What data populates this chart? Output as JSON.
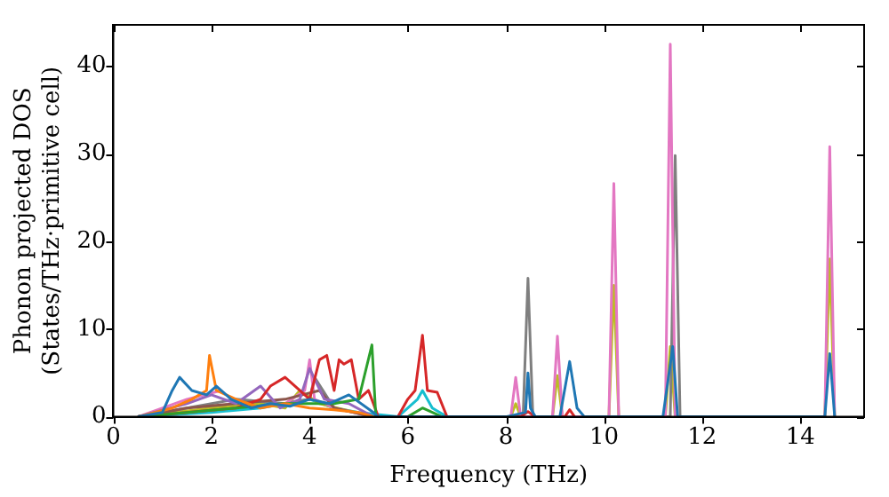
{
  "chart_data": {
    "type": "line",
    "xlabel": "Frequency (THz)",
    "ylabel": "Phonon projected DOS\n(States/THz·primitive cell)",
    "xlim": [
      0,
      15.3
    ],
    "ylim": [
      0,
      44.7
    ],
    "xticks": [
      0,
      2,
      4,
      6,
      8,
      10,
      12,
      14
    ],
    "yticks": [
      0,
      10,
      20,
      30,
      40
    ],
    "grid": false,
    "legend": false,
    "series": [
      {
        "color": "#1f77b4",
        "x": [
          0.5,
          1.0,
          1.2,
          1.35,
          1.6,
          1.9,
          2.1,
          2.4,
          2.8,
          3.2,
          3.6,
          4.0,
          4.4,
          4.8,
          5.3,
          5.4,
          8.0,
          8.4,
          8.45,
          8.5,
          8.6,
          9.1,
          9.3,
          9.45,
          9.6,
          11.2,
          11.4,
          11.5,
          14.5,
          14.6,
          14.7
        ],
        "values": [
          0,
          0.5,
          3,
          4.5,
          3,
          2.5,
          3.5,
          2,
          1,
          1.5,
          1.2,
          2,
          1.5,
          2.5,
          0.5,
          0,
          0,
          0.5,
          5,
          1,
          0,
          0,
          6.3,
          1,
          0,
          0,
          8,
          0,
          0,
          7.2,
          0
        ]
      },
      {
        "color": "#ff7f0e",
        "x": [
          0.5,
          1.2,
          1.6,
          1.9,
          1.96,
          2.1,
          2.5,
          3.0,
          3.5,
          4.0,
          4.5,
          5.0,
          5.3
        ],
        "values": [
          0,
          1,
          2,
          3,
          7,
          3,
          2,
          1,
          1.5,
          1,
          0.8,
          0.5,
          0
        ]
      },
      {
        "color": "#2ca02c",
        "x": [
          0.5,
          1.5,
          2.5,
          3.5,
          4.5,
          5.0,
          5.27,
          5.35,
          6.0,
          6.3,
          6.7
        ],
        "values": [
          0,
          0.5,
          1,
          1.5,
          1.5,
          2,
          8.2,
          0,
          0,
          1,
          0
        ]
      },
      {
        "color": "#d62728",
        "x": [
          0.5,
          1.5,
          2.5,
          3.0,
          3.2,
          3.5,
          3.8,
          4.0,
          4.2,
          4.35,
          4.5,
          4.6,
          4.7,
          4.85,
          5.0,
          5.2,
          5.4,
          5.8,
          6.0,
          6.15,
          6.3,
          6.4,
          6.6,
          6.8,
          8.3,
          8.45,
          8.6,
          9.2,
          9.3,
          9.4
        ],
        "values": [
          0,
          0.5,
          1,
          2,
          3.5,
          4.5,
          3,
          2,
          6.5,
          7,
          3,
          6.5,
          6,
          6.5,
          2,
          3,
          0,
          0,
          2,
          3,
          9.3,
          3,
          2.8,
          0,
          0,
          0.6,
          0,
          0,
          0.8,
          0
        ]
      },
      {
        "color": "#9467bd",
        "x": [
          0.5,
          1.5,
          2.0,
          2.5,
          3.0,
          3.4,
          3.8,
          4.0,
          4.3,
          4.8,
          5.3
        ],
        "values": [
          0,
          1.5,
          2.5,
          1.5,
          3.5,
          1,
          2,
          5.5,
          2,
          1.5,
          0
        ]
      },
      {
        "color": "#8c564b",
        "x": [
          0.5,
          1.5,
          2.5,
          3.5,
          4.2,
          4.5,
          5.3
        ],
        "values": [
          0,
          1,
          1.5,
          2,
          3,
          1,
          0
        ]
      },
      {
        "color": "#e377c2",
        "x": [
          0.5,
          1.5,
          2.2,
          2.8,
          3.5,
          3.9,
          4.0,
          4.1,
          4.5,
          5.3,
          8.1,
          8.2,
          8.3,
          8.95,
          9.05,
          9.15,
          10.1,
          10.2,
          10.3,
          11.25,
          11.35,
          11.45,
          14.5,
          14.6,
          14.7
        ],
        "values": [
          0,
          2,
          3,
          null,
          1.5,
          3,
          6.5,
          2,
          1,
          0,
          0,
          4.5,
          0,
          0,
          9.2,
          0,
          0,
          26.6,
          0,
          0,
          42.5,
          0,
          0,
          30.8,
          0
        ]
      },
      {
        "color": "#7f7f7f",
        "x": [
          0.5,
          1.5,
          2.5,
          3.5,
          4.0,
          4.1,
          4.5,
          5.3,
          8.35,
          8.45,
          8.55,
          11.35,
          11.45,
          11.55
        ],
        "values": [
          0,
          1,
          2,
          1.5,
          2,
          4.5,
          1,
          0,
          0,
          15.8,
          0,
          0,
          29.8,
          0
        ]
      },
      {
        "color": "#bcbd22",
        "x": [
          0.5,
          2,
          3,
          3.5,
          3.8,
          4.2,
          5.3,
          8.1,
          8.2,
          8.3,
          8.95,
          9.05,
          9.15,
          10.1,
          10.2,
          10.3,
          11.25,
          11.35,
          11.45,
          14.5,
          14.6,
          14.7
        ],
        "values": [
          0,
          1,
          1.5,
          1,
          3,
          1.5,
          0,
          0,
          1.5,
          0,
          0,
          4.7,
          0,
          0,
          15,
          0,
          0,
          8,
          0,
          0,
          18,
          0
        ]
      },
      {
        "color": "#17becf",
        "x": [
          0.5,
          2,
          3,
          4,
          4.5,
          5,
          5.8,
          6.2,
          6.3,
          6.5,
          6.8
        ],
        "values": [
          0,
          0.5,
          1,
          2,
          1,
          0.5,
          0,
          2,
          3,
          1,
          0
        ]
      }
    ]
  }
}
